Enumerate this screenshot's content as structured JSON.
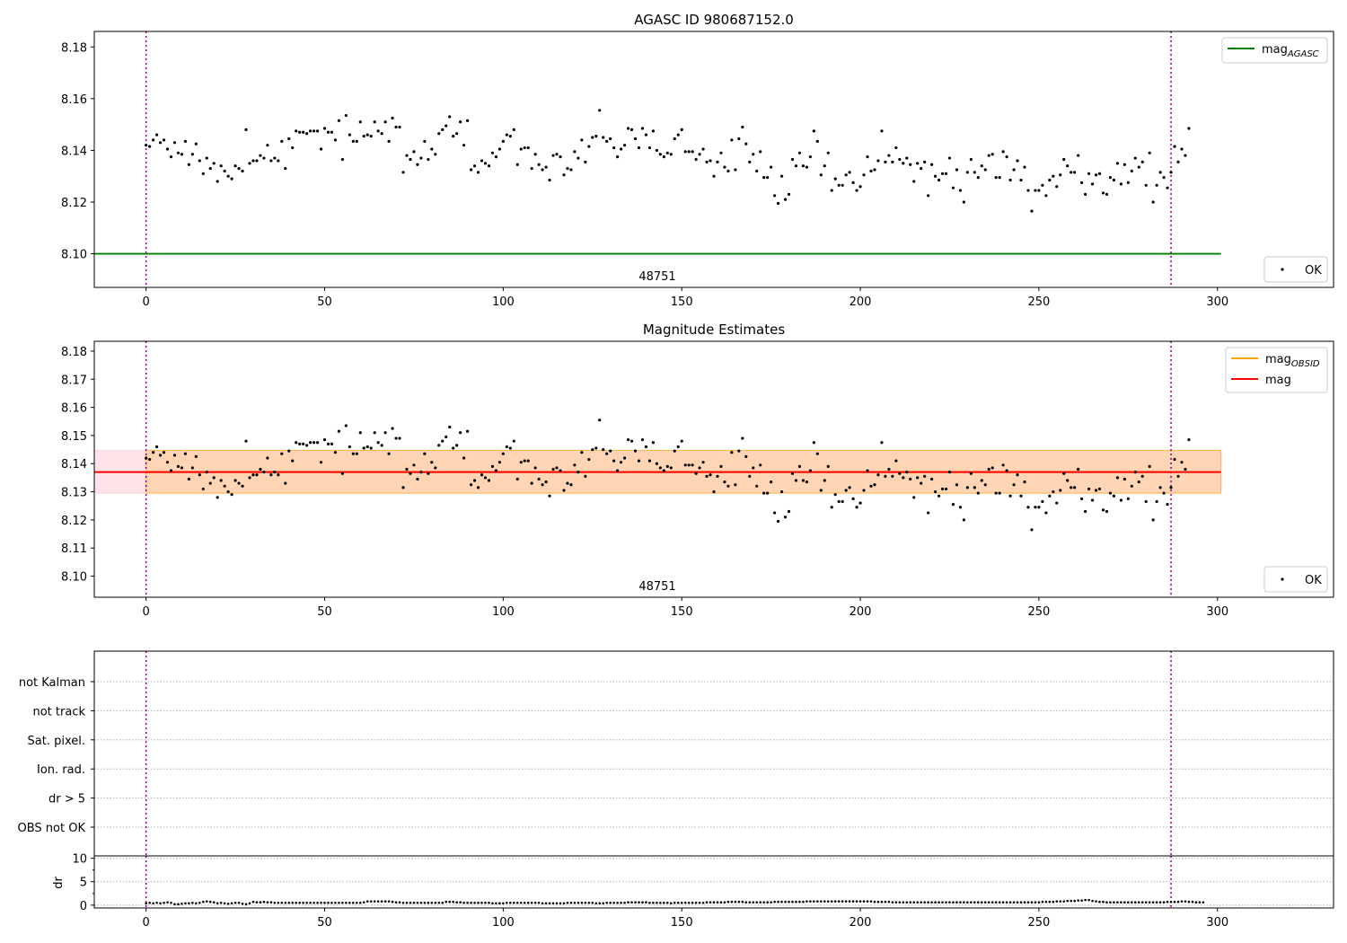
{
  "figure": {
    "panel1_title": "AGASC ID 980687152.0",
    "panel2_title": "Magnitude Estimates",
    "obsid_label": "48751",
    "dr_ylabel": "dr"
  },
  "chart_data": [
    {
      "type": "scatter",
      "title": "AGASC ID 980687152.0",
      "xlim": [
        -14.5,
        332.5
      ],
      "ylim": [
        8.087,
        8.186
      ],
      "xticks": [
        0,
        50,
        100,
        150,
        200,
        250,
        300
      ],
      "yticks": [
        8.1,
        8.12,
        8.14,
        8.16,
        8.18
      ],
      "ytick_labels": [
        "8.10",
        "8.12",
        "8.14",
        "8.16",
        "8.18"
      ],
      "series_ref": "observations",
      "lines": [
        {
          "name": "mag_AGASC",
          "label": "mag",
          "subscript": "AGASC",
          "value": 8.1,
          "x_range": [
            -14.5,
            301
          ],
          "color": "#008000"
        }
      ],
      "vlines": [
        0,
        287
      ],
      "annotation": "48751",
      "legend": {
        "upper_right": [
          {
            "label": "mag",
            "subscript": "AGASC",
            "color": "#008000"
          }
        ],
        "lower_right": [
          {
            "label": "OK"
          }
        ]
      }
    },
    {
      "type": "scatter",
      "title": "Magnitude Estimates",
      "xlim": [
        -14.5,
        332.5
      ],
      "ylim": [
        8.0925,
        8.1835
      ],
      "xticks": [
        0,
        50,
        100,
        150,
        200,
        250,
        300
      ],
      "yticks": [
        8.1,
        8.11,
        8.12,
        8.13,
        8.14,
        8.15,
        8.16,
        8.17,
        8.18
      ],
      "ytick_labels": [
        "8.10",
        "8.11",
        "8.12",
        "8.13",
        "8.14",
        "8.15",
        "8.16",
        "8.17",
        "8.18"
      ],
      "series_ref": "observations",
      "lines": [
        {
          "name": "mag_OBSID",
          "label": "mag",
          "subscript": "OBSID",
          "value": 8.137,
          "x_range": [
            0,
            287
          ],
          "color": "#ffa500"
        },
        {
          "name": "mag",
          "label": "mag",
          "value": 8.137,
          "x_range": [
            -14.5,
            301
          ],
          "color": "#ff0000"
        }
      ],
      "bands": [
        {
          "name": "mag_band",
          "y_range": [
            8.1295,
            8.1447
          ],
          "x_range": [
            -14.5,
            301
          ],
          "color": "#ffc0cb",
          "opacity": 0.45
        },
        {
          "name": "mag_obsid_band",
          "y_range": [
            8.1295,
            8.1447
          ],
          "x_range": [
            0,
            301
          ],
          "color": "#ffa500",
          "opacity": 0.22
        }
      ],
      "vlines": [
        0,
        287
      ],
      "annotation": "48751",
      "legend": {
        "upper_right": [
          {
            "label": "mag",
            "subscript": "OBSID",
            "color": "#ffa500"
          },
          {
            "label": "mag",
            "color": "#ff0000"
          }
        ],
        "lower_right": [
          {
            "label": "OK"
          }
        ]
      }
    },
    {
      "type": "flags",
      "xlim": [
        -14.5,
        332.5
      ],
      "categories": [
        "OBS not OK",
        "dr > 5",
        "Ion. rad.",
        "Sat. pixel.",
        "not track",
        "not Kalman"
      ],
      "vlines": [
        0,
        287
      ],
      "flagged_points": []
    },
    {
      "type": "scatter",
      "ylabel": "dr",
      "xlim": [
        -14.5,
        332.5
      ],
      "ylim": [
        -0.6,
        10.5
      ],
      "xticks": [
        0,
        50,
        100,
        150,
        200,
        250,
        300
      ],
      "yticks": [
        0,
        5,
        10
      ],
      "ytick_labels": [
        "0",
        "5",
        "10"
      ],
      "vlines": [
        0,
        287
      ],
      "dr_values": [
        0.4,
        0.5,
        0.4,
        0.5,
        0.4,
        0.5,
        0.6,
        0.5,
        0.2,
        0.2,
        0.3,
        0.4,
        0.4,
        0.5,
        0.4,
        0.5,
        0.7,
        0.8,
        0.7,
        0.6,
        0.4,
        0.5,
        0.4,
        0.3,
        0.4,
        0.5,
        0.5,
        0.3,
        0.2,
        0.4,
        0.7,
        0.6,
        0.6,
        0.7,
        0.6,
        0.6,
        0.5,
        0.5,
        0.5,
        0.5,
        0.5,
        0.5,
        0.5,
        0.5,
        0.5,
        0.5,
        0.5,
        0.5,
        0.5,
        0.5,
        0.5,
        0.5,
        0.5,
        0.5,
        0.5,
        0.5,
        0.5,
        0.5,
        0.5,
        0.5,
        0.5,
        0.6,
        0.8,
        0.8,
        0.8,
        0.8,
        0.8,
        0.8,
        0.8,
        0.7,
        0.6,
        0.6,
        0.5,
        0.5,
        0.5,
        0.5,
        0.5,
        0.5,
        0.5,
        0.5,
        0.5,
        0.5,
        0.5,
        0.5,
        0.7,
        0.7,
        0.7,
        0.6,
        0.6,
        0.5,
        0.5,
        0.5,
        0.5,
        0.5,
        0.5,
        0.5,
        0.5,
        0.4,
        0.4,
        0.4,
        0.4,
        0.5,
        0.5,
        0.5,
        0.5,
        0.5,
        0.5,
        0.5,
        0.5,
        0.5,
        0.5,
        0.4,
        0.4,
        0.4,
        0.4,
        0.4,
        0.4,
        0.4,
        0.5,
        0.5,
        0.5,
        0.5,
        0.5,
        0.5,
        0.5,
        0.5,
        0.4,
        0.4,
        0.4,
        0.5,
        0.5,
        0.5,
        0.5,
        0.5,
        0.5,
        0.6,
        0.6,
        0.6,
        0.6,
        0.6,
        0.6,
        0.5,
        0.5,
        0.5,
        0.5,
        0.5,
        0.5,
        0.4,
        0.5,
        0.5,
        0.5,
        0.5,
        0.5,
        0.5,
        0.5,
        0.5,
        0.5,
        0.6,
        0.6,
        0.6,
        0.6,
        0.6,
        0.6,
        0.7,
        0.7,
        0.7,
        0.7,
        0.7,
        0.6,
        0.6,
        0.6,
        0.6,
        0.6,
        0.6,
        0.6,
        0.6,
        0.7,
        0.7,
        0.7,
        0.7,
        0.7,
        0.7,
        0.7,
        0.7,
        0.7,
        0.8,
        0.8,
        0.8,
        0.8,
        0.8,
        0.8,
        0.8,
        0.8,
        0.8,
        0.8,
        0.8,
        0.8,
        0.8,
        0.8,
        0.8,
        0.8,
        0.8,
        0.8,
        0.8,
        0.7,
        0.7,
        0.7,
        0.7,
        0.7,
        0.6,
        0.6,
        0.6,
        0.6,
        0.6,
        0.6,
        0.6,
        0.6,
        0.6,
        0.6,
        0.6,
        0.6,
        0.6,
        0.6,
        0.6,
        0.6,
        0.6,
        0.6,
        0.6,
        0.6,
        0.6,
        0.6,
        0.6,
        0.6,
        0.6,
        0.6,
        0.6,
        0.6,
        0.6,
        0.6,
        0.6,
        0.6,
        0.6,
        0.6,
        0.6,
        0.6,
        0.6,
        0.6,
        0.6,
        0.6,
        0.6,
        0.6,
        0.7,
        0.7,
        0.7,
        0.7,
        0.8,
        0.8,
        0.8,
        0.9,
        0.9,
        0.9,
        1.0,
        1.0,
        1.1,
        1.1,
        0.9,
        0.8,
        0.7,
        0.7,
        0.6,
        0.6,
        0.6,
        0.6,
        0.6,
        0.6,
        0.6,
        0.6,
        0.6,
        0.6,
        0.6,
        0.6,
        0.6,
        0.6,
        0.6,
        0.6,
        0.6,
        0.7,
        0.7,
        0.7,
        0.7,
        0.8,
        0.8,
        0.7,
        0.7,
        0.6,
        0.6,
        0.6
      ]
    }
  ],
  "observations": {
    "name": "OK",
    "x_start": 0,
    "x_step": 1,
    "mags": [
      8.142,
      8.1415,
      8.144,
      8.146,
      8.143,
      8.144,
      8.1405,
      8.1375,
      8.143,
      8.139,
      8.1385,
      8.1435,
      8.1345,
      8.1385,
      8.1425,
      8.136,
      8.131,
      8.137,
      8.133,
      8.135,
      8.128,
      8.134,
      8.132,
      8.13,
      8.129,
      8.134,
      8.133,
      8.132,
      8.148,
      8.135,
      8.136,
      8.136,
      8.138,
      8.137,
      8.142,
      8.136,
      8.137,
      8.136,
      8.1435,
      8.133,
      8.1445,
      8.141,
      8.1475,
      8.147,
      8.147,
      8.1465,
      8.1475,
      8.1475,
      8.1475,
      8.1405,
      8.1485,
      8.147,
      8.147,
      8.144,
      8.1515,
      8.1365,
      8.1535,
      8.146,
      8.1435,
      8.1435,
      8.151,
      8.1455,
      8.146,
      8.1455,
      8.151,
      8.1475,
      8.1465,
      8.151,
      8.1435,
      8.1525,
      8.149,
      8.149,
      8.1315,
      8.138,
      8.1365,
      8.1395,
      8.1345,
      8.137,
      8.1435,
      8.1365,
      8.1405,
      8.1385,
      8.1465,
      8.148,
      8.1495,
      8.153,
      8.1455,
      8.1465,
      8.151,
      8.142,
      8.1515,
      8.1325,
      8.134,
      8.1315,
      8.136,
      8.135,
      8.134,
      8.139,
      8.1375,
      8.1405,
      8.1435,
      8.146,
      8.1455,
      8.148,
      8.1345,
      8.1405,
      8.141,
      8.141,
      8.133,
      8.1385,
      8.1345,
      8.1325,
      8.1335,
      8.1285,
      8.138,
      8.1385,
      8.1375,
      8.1305,
      8.133,
      8.1325,
      8.1395,
      8.137,
      8.144,
      8.1355,
      8.1415,
      8.145,
      8.1455,
      8.1555,
      8.145,
      8.1435,
      8.1445,
      8.141,
      8.1375,
      8.1405,
      8.142,
      8.1485,
      8.148,
      8.1445,
      8.141,
      8.1485,
      8.146,
      8.141,
      8.1475,
      8.14,
      8.1385,
      8.1375,
      8.139,
      8.1385,
      8.1445,
      8.146,
      8.148,
      8.1395,
      8.1395,
      8.1395,
      8.1365,
      8.1385,
      8.1405,
      8.1355,
      8.136,
      8.13,
      8.1355,
      8.139,
      8.1335,
      8.132,
      8.144,
      8.1325,
      8.1445,
      8.149,
      8.1425,
      8.1355,
      8.1385,
      8.132,
      8.1395,
      8.1295,
      8.1295,
      8.1335,
      8.1225,
      8.1195,
      8.13,
      8.121,
      8.123,
      8.1365,
      8.134,
      8.139,
      8.134,
      8.1335,
      8.1375,
      8.1475,
      8.1435,
      8.1305,
      8.134,
      8.139,
      8.1245,
      8.129,
      8.1265,
      8.1265,
      8.1305,
      8.1315,
      8.1275,
      8.1245,
      8.126,
      8.1305,
      8.1375,
      8.132,
      8.1325,
      8.136,
      8.1475,
      8.1355,
      8.138,
      8.1355,
      8.141,
      8.1365,
      8.135,
      8.137,
      8.1345,
      8.128,
      8.135,
      8.133,
      8.1355,
      8.1225,
      8.1345,
      8.13,
      8.1285,
      8.131,
      8.131,
      8.137,
      8.1255,
      8.1325,
      8.1245,
      8.12,
      8.1315,
      8.1365,
      8.1315,
      8.1295,
      8.134,
      8.1325,
      8.138,
      8.1385,
      8.1295,
      8.1295,
      8.1395,
      8.1375,
      8.1285,
      8.1325,
      8.136,
      8.1285,
      8.1335,
      8.1245,
      8.1165,
      8.1245,
      8.1245,
      8.1265,
      8.1225,
      8.1285,
      8.13,
      8.126,
      8.1305,
      8.1365,
      8.134,
      8.1315,
      8.1315,
      8.138,
      8.1275,
      8.123,
      8.131,
      8.127,
      8.1305,
      8.131,
      8.1235,
      8.123,
      8.1295,
      8.1285,
      8.135,
      8.127,
      8.1345,
      8.1275,
      8.132,
      8.137,
      8.1335,
      8.1355,
      8.1265,
      8.139,
      8.12,
      8.1265,
      8.1315,
      8.1295,
      8.1255,
      8.1315,
      8.1415,
      8.1355,
      8.1405,
      8.138,
      8.1485
    ]
  }
}
